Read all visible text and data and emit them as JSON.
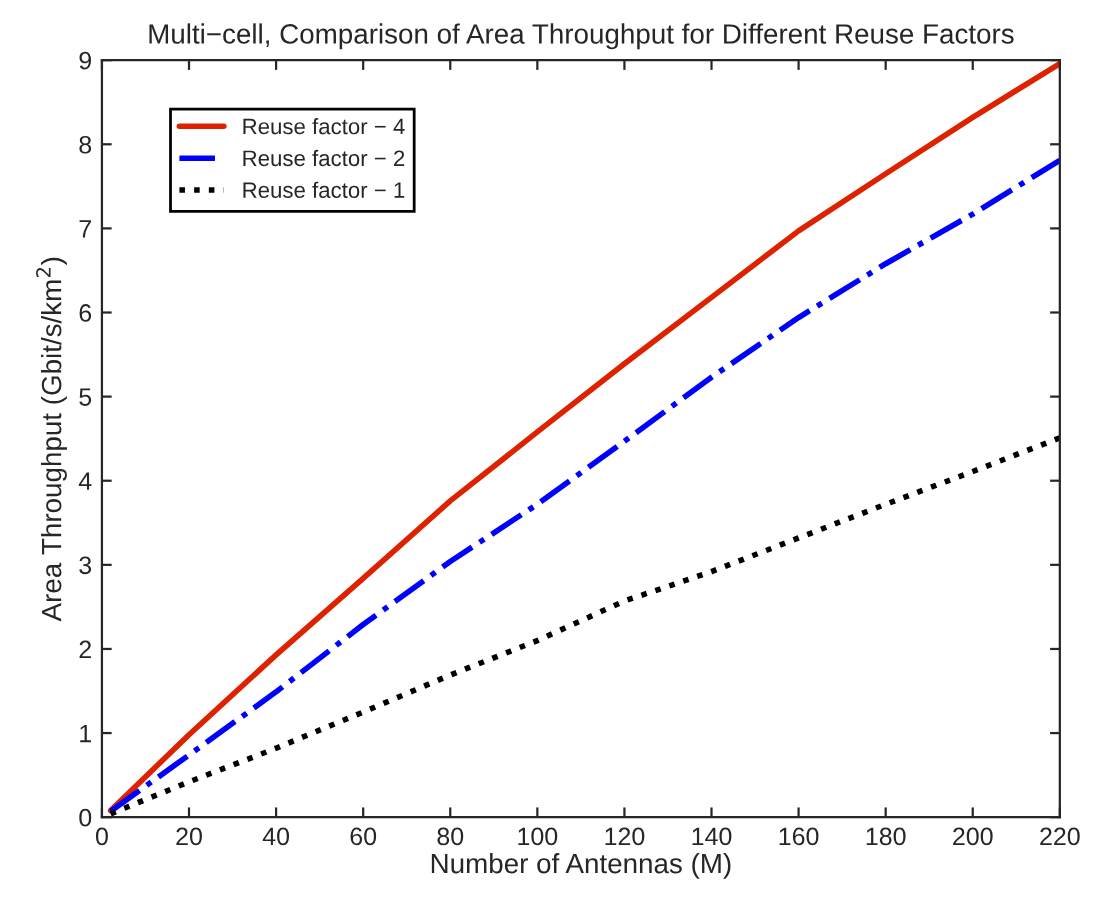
{
  "chart_data": {
    "type": "line",
    "title": "Multi−cell, Comparison of Area Throughput for Different Reuse Factors",
    "xlabel": "Number of Antennas (M)",
    "ylabel": "Area Throughput (Gbit/s/km$^{2}$)",
    "x": [
      2,
      20,
      40,
      60,
      80,
      100,
      120,
      140,
      160,
      180,
      200,
      220
    ],
    "series": [
      {
        "name": "Reuse factor − 4",
        "color": "#dd2200",
        "line_style": "solid",
        "values": [
          0.08,
          0.98,
          1.93,
          2.84,
          3.76,
          4.58,
          5.39,
          6.18,
          6.97,
          7.65,
          8.32,
          8.96
        ]
      },
      {
        "name": "Reuse factor − 2",
        "color": "#0000ff",
        "line_style": "dashdot",
        "values": [
          0.07,
          0.74,
          1.49,
          2.29,
          3.04,
          3.72,
          4.47,
          5.23,
          5.94,
          6.58,
          7.17,
          7.81
        ]
      },
      {
        "name": "Reuse factor − 1",
        "color": "#000000",
        "line_style": "dotted",
        "values": [
          0.04,
          0.42,
          0.82,
          1.25,
          1.69,
          2.1,
          2.57,
          2.92,
          3.32,
          3.72,
          4.11,
          4.51
        ]
      }
    ],
    "xlim": [
      0,
      220
    ],
    "xticks": [
      0,
      20,
      40,
      60,
      80,
      100,
      120,
      140,
      160,
      180,
      200,
      220
    ],
    "ylim": [
      0,
      9
    ],
    "yticks": [
      0,
      1,
      2,
      3,
      4,
      5,
      6,
      7,
      8,
      9
    ],
    "grid": false,
    "legend": "top left",
    "marker": "none"
  }
}
